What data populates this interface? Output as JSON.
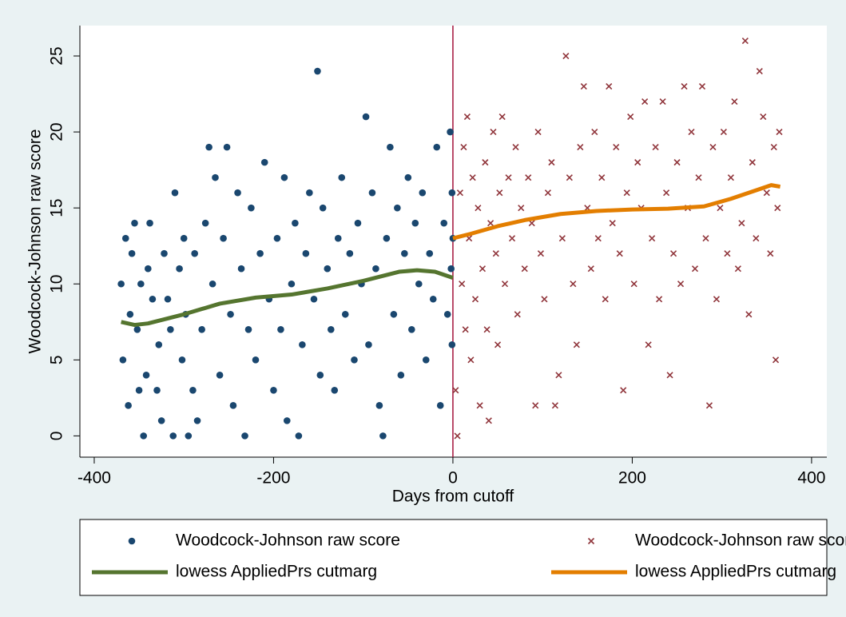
{
  "chart_data": {
    "type": "scatter",
    "xlabel": "Days from cutoff",
    "ylabel": "Woodcock-Johnson raw score",
    "xlim": [
      -416,
      417
    ],
    "ylim": [
      -1.4,
      27
    ],
    "xticks": [
      -400,
      -200,
      0,
      200,
      400
    ],
    "yticks": [
      0,
      5,
      10,
      15,
      20,
      25
    ],
    "xline": 0,
    "xline_color": "#a3123a",
    "grid": false,
    "legend_position": "bottom",
    "series": [
      {
        "name": "Woodcock-Johnson raw score",
        "type": "scatter",
        "marker": "circle",
        "color": "#1a476f",
        "x": [
          -370,
          -368,
          -365,
          -362,
          -360,
          -358,
          -355,
          -352,
          -350,
          -348,
          -345,
          -342,
          -340,
          -338,
          -335,
          -330,
          -328,
          -325,
          -322,
          -318,
          -315,
          -312,
          -310,
          -305,
          -302,
          -300,
          -298,
          -295,
          -290,
          -288,
          -285,
          -280,
          -276,
          -272,
          -268,
          -265,
          -260,
          -256,
          -252,
          -248,
          -245,
          -240,
          -236,
          -232,
          -228,
          -225,
          -220,
          -215,
          -210,
          -205,
          -200,
          -196,
          -192,
          -188,
          -185,
          -180,
          -176,
          -172,
          -168,
          -164,
          -160,
          -155,
          -151,
          -148,
          -145,
          -140,
          -136,
          -132,
          -128,
          -124,
          -120,
          -115,
          -110,
          -106,
          -102,
          -97,
          -94,
          -90,
          -86,
          -82,
          -78,
          -74,
          -70,
          -66,
          -62,
          -58,
          -54,
          -50,
          -46,
          -42,
          -38,
          -34,
          -30,
          -26,
          -22,
          -18,
          -14,
          -10,
          -6,
          -3,
          -2,
          -1,
          -1,
          0
        ],
        "values": [
          10,
          5,
          13,
          2,
          8,
          12,
          14,
          7,
          3,
          10,
          0,
          4,
          11,
          14,
          9,
          3,
          6,
          1,
          12,
          9,
          7,
          0,
          16,
          11,
          5,
          13,
          8,
          0,
          3,
          12,
          1,
          7,
          14,
          19,
          10,
          17,
          4,
          13,
          19,
          8,
          2,
          16,
          11,
          0,
          7,
          15,
          5,
          12,
          18,
          9,
          3,
          13,
          7,
          17,
          1,
          10,
          14,
          0,
          6,
          12,
          16,
          9,
          24,
          4,
          15,
          11,
          7,
          3,
          13,
          17,
          8,
          12,
          5,
          14,
          10,
          21,
          6,
          16,
          11,
          2,
          0,
          13,
          19,
          8,
          15,
          4,
          12,
          17,
          7,
          14,
          10,
          16,
          5,
          12,
          9,
          19,
          2,
          14,
          8,
          20,
          11,
          16,
          6,
          13
        ]
      },
      {
        "name": "Woodcock-Johnson raw score",
        "type": "scatter",
        "marker": "x",
        "color": "#90353b",
        "x": [
          3,
          5,
          8,
          10,
          12,
          14,
          16,
          18,
          20,
          22,
          25,
          28,
          30,
          33,
          36,
          38,
          40,
          42,
          45,
          48,
          50,
          52,
          55,
          58,
          62,
          66,
          70,
          72,
          76,
          80,
          84,
          88,
          92,
          95,
          98,
          102,
          106,
          110,
          114,
          118,
          122,
          126,
          130,
          134,
          138,
          142,
          146,
          150,
          154,
          158,
          162,
          166,
          170,
          174,
          178,
          182,
          186,
          190,
          194,
          198,
          202,
          206,
          210,
          214,
          218,
          222,
          226,
          230,
          234,
          238,
          242,
          246,
          250,
          254,
          258,
          262,
          266,
          270,
          274,
          278,
          282,
          286,
          290,
          294,
          298,
          302,
          306,
          310,
          314,
          318,
          322,
          326,
          330,
          334,
          338,
          342,
          346,
          350,
          354,
          358,
          360,
          362,
          364
        ],
        "values": [
          3,
          0,
          16,
          10,
          19,
          7,
          21,
          13,
          5,
          17,
          9,
          15,
          2,
          11,
          18,
          7,
          1,
          14,
          20,
          12,
          6,
          16,
          21,
          10,
          17,
          13,
          19,
          8,
          15,
          11,
          17,
          14,
          2,
          20,
          12,
          9,
          16,
          18,
          2,
          4,
          13,
          25,
          17,
          10,
          6,
          19,
          23,
          15,
          11,
          20,
          13,
          17,
          9,
          23,
          14,
          19,
          12,
          3,
          16,
          21,
          10,
          18,
          15,
          22,
          6,
          13,
          19,
          9,
          22,
          16,
          4,
          12,
          18,
          10,
          23,
          15,
          20,
          11,
          17,
          23,
          13,
          2,
          19,
          9,
          15,
          20,
          12,
          17,
          22,
          11,
          14,
          26,
          8,
          18,
          13,
          24,
          21,
          16,
          12,
          19,
          5,
          15,
          20
        ]
      },
      {
        "name": "lowess AppliedPrs cutmarg",
        "type": "line",
        "color": "#55752f",
        "x": [
          -370,
          -355,
          -340,
          -300,
          -260,
          -220,
          -180,
          -140,
          -100,
          -60,
          -40,
          -20,
          0
        ],
        "values": [
          7.5,
          7.3,
          7.4,
          8,
          8.7,
          9.1,
          9.3,
          9.7,
          10.2,
          10.8,
          10.9,
          10.8,
          10.4
        ]
      },
      {
        "name": "lowess AppliedPrs cutmarg",
        "type": "line",
        "color": "#e37e00",
        "x": [
          0,
          20,
          50,
          80,
          120,
          160,
          200,
          240,
          280,
          310,
          340,
          355,
          365
        ],
        "values": [
          13,
          13.3,
          13.8,
          14.2,
          14.6,
          14.8,
          14.9,
          14.95,
          15.1,
          15.6,
          16.2,
          16.5,
          16.4
        ]
      }
    ]
  }
}
